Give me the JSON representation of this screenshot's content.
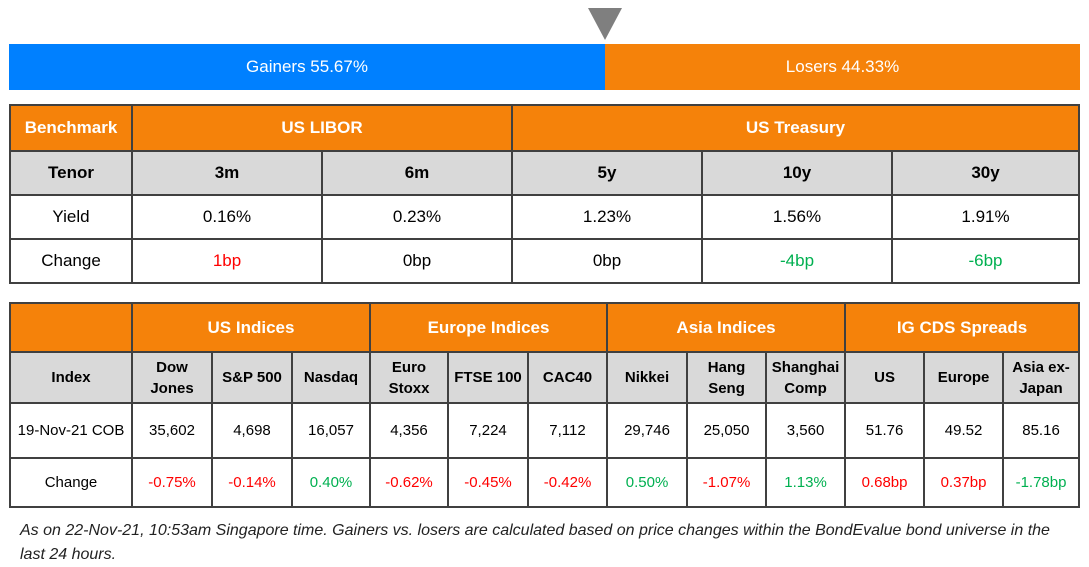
{
  "bar": {
    "gainers": "Gainers 55.67%",
    "losers": "Losers 44.33%",
    "gainers_pct": 55.67,
    "losers_pct": 44.33,
    "gainers_color": "#0080ff",
    "losers_color": "#f5820a"
  },
  "rates": {
    "benchmark": "Benchmark",
    "libor": "US LIBOR",
    "treasury": "US Treasury",
    "tenor_label": "Tenor",
    "tenors": [
      "3m",
      "6m",
      "5y",
      "10y",
      "30y"
    ],
    "yield_label": "Yield",
    "yields": [
      "0.16%",
      "0.23%",
      "1.23%",
      "1.56%",
      "1.91%"
    ],
    "change_label": "Change",
    "changes": [
      "1bp",
      "0bp",
      "0bp",
      "-4bp",
      "-6bp"
    ]
  },
  "indices": {
    "groups": [
      "US Indices",
      "Europe Indices",
      "Asia Indices",
      "IG CDS Spreads"
    ],
    "index_label": "Index",
    "names": [
      "Dow Jones",
      "S&P 500",
      "Nasdaq",
      "Euro Stoxx",
      "FTSE 100",
      "CAC40",
      "Nikkei",
      "Hang Seng",
      "Shanghai Comp",
      "US",
      "Europe",
      "Asia ex-Japan"
    ],
    "date_label": "19-Nov-21 COB",
    "values": [
      "35,602",
      "4,698",
      "16,057",
      "4,356",
      "7,224",
      "7,112",
      "29,746",
      "25,050",
      "3,560",
      "51.76",
      "49.52",
      "85.16"
    ],
    "change_label": "Change",
    "changes": [
      "-0.75%",
      "-0.14%",
      "0.40%",
      "-0.62%",
      "-0.45%",
      "-0.42%",
      "0.50%",
      "-1.07%",
      "1.13%",
      "0.68bp",
      "0.37bp",
      "-1.78bp"
    ]
  },
  "colors": {
    "negative": "#ff0000",
    "positive": "#00b050",
    "header": "#f5820a",
    "subheader": "#d9d9d9"
  },
  "footnote": "As on 22-Nov-21, 10:53am Singapore time. Gainers vs. losers are calculated based on price changes within the BondEvalue bond universe in the last 24 hours."
}
